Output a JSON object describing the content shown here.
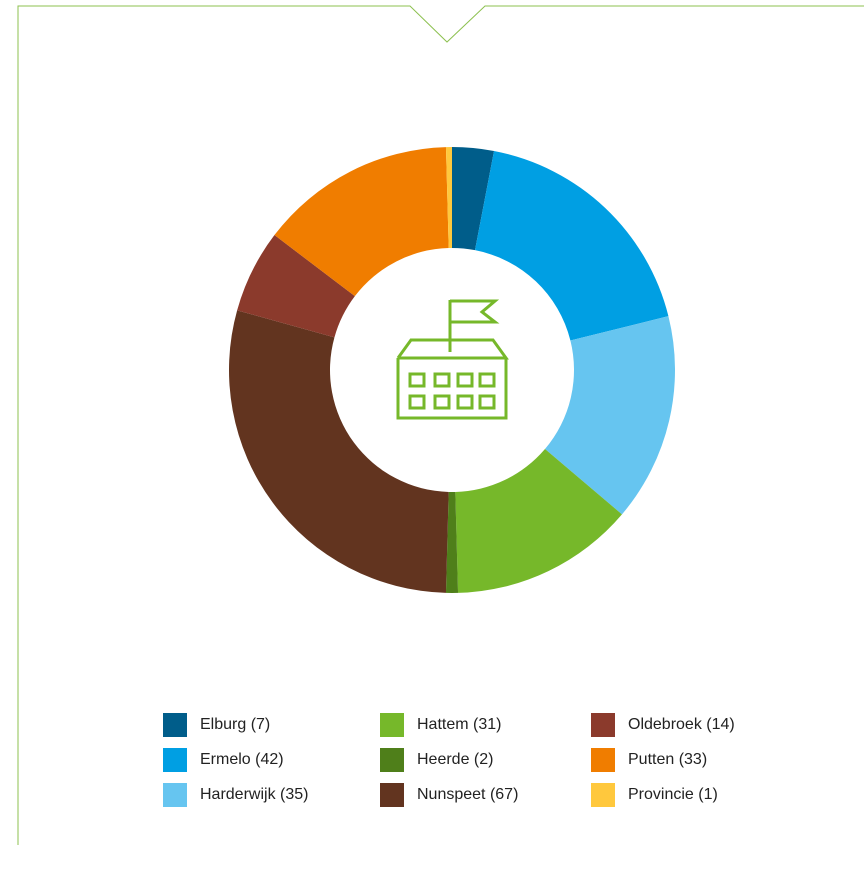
{
  "chart_data": {
    "type": "donut",
    "categories": [
      "Elburg (7)",
      "Ermelo (42)",
      "Harderwijk (35)",
      "Hattem (31)",
      "Heerde (2)",
      "Nunspeet (67)",
      "Oldebroek (14)",
      "Putten (33)",
      "Provincie (1)"
    ],
    "values": [
      7,
      42,
      35,
      31,
      2,
      67,
      14,
      33,
      1
    ],
    "colors": [
      "#005d8a",
      "#009fe3",
      "#66c5f0",
      "#76b82a",
      "#4f7f1a",
      "#62341f",
      "#8b3a2c",
      "#f07d00",
      "#ffc83d"
    ],
    "legend": "bottom"
  }
}
